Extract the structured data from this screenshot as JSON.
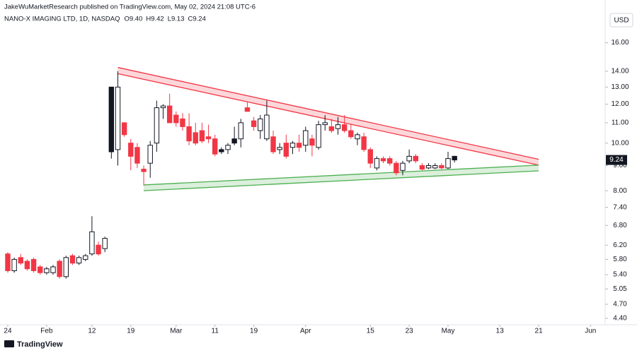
{
  "publisher": "JakeWuMarketResearch published on TradingView.com, May 02, 2024 21:08 UTC-6",
  "brand": "TradingView",
  "chart_data": {
    "type": "candlestick",
    "title": "NANO-X IMAGING LTD, 1D, NASDAQ",
    "ohlc_text": [
      "O9.40",
      "H9.42",
      "L9.13",
      "C9.24"
    ],
    "currency": "USD",
    "log_scale": true,
    "grid": false,
    "xlim": [
      -1.2,
      91.5
    ],
    "xticks": [
      {
        "value": 0,
        "label": "24"
      },
      {
        "value": 6,
        "label": "Feb"
      },
      {
        "value": 13,
        "label": "12"
      },
      {
        "value": 19,
        "label": "19"
      },
      {
        "value": 26,
        "label": "Mar"
      },
      {
        "value": 32,
        "label": "11"
      },
      {
        "value": 38,
        "label": "19"
      },
      {
        "value": 46,
        "label": "Apr"
      },
      {
        "value": 56,
        "label": "15"
      },
      {
        "value": 62,
        "label": "23"
      },
      {
        "value": 68,
        "label": "May"
      },
      {
        "value": 76,
        "label": "13"
      },
      {
        "value": 82,
        "label": "21"
      },
      {
        "value": 90,
        "label": "Jun"
      }
    ],
    "ylim": [
      4.27,
      18.6
    ],
    "yticks": [
      {
        "value": 16,
        "label": "16.00"
      },
      {
        "value": 14,
        "label": "14.00"
      },
      {
        "value": 13,
        "label": "13.00"
      },
      {
        "value": 12,
        "label": "12.00"
      },
      {
        "value": 11,
        "label": "11.00"
      },
      {
        "value": 10,
        "label": "10.00"
      },
      {
        "value": 9,
        "label": "9.00"
      },
      {
        "value": 8,
        "label": "8.00"
      },
      {
        "value": 7.4,
        "label": "7.40"
      },
      {
        "value": 6.8,
        "label": "6.80"
      },
      {
        "value": 6.2,
        "label": "6.20"
      },
      {
        "value": 5.8,
        "label": "5.80"
      },
      {
        "value": 5.4,
        "label": "5.40"
      },
      {
        "value": 5.05,
        "label": "5.05"
      },
      {
        "value": 4.7,
        "label": "4.70"
      },
      {
        "value": 4.4,
        "label": "4.40"
      }
    ],
    "open": [
      5.95,
      5.5,
      5.85,
      5.75,
      5.8,
      5.6,
      5.45,
      5.45,
      5.75,
      5.35,
      5.9,
      5.7,
      5.8,
      5.95,
      6.2,
      6.1,
      13.0,
      9.7,
      11.0,
      10.0,
      9.8,
      8.85,
      9.1,
      10.0,
      11.8,
      11.9,
      11.4,
      11.2,
      10.8,
      10.5,
      10.6,
      10.3,
      10.2,
      9.7,
      9.7,
      10.2,
      10.2,
      11.8,
      11.1,
      10.6,
      10.2,
      10.3,
      9.7,
      10.0,
      9.8,
      10.0,
      9.9,
      10.2,
      9.8,
      10.9,
      10.8,
      10.7,
      10.9,
      10.6,
      10.2,
      10.3,
      9.7,
      8.9,
      9.3,
      9.3,
      9.1,
      8.8,
      9.2,
      9.4,
      9.0,
      8.9,
      8.9,
      9.0,
      8.9,
      9.4
    ],
    "high": [
      6.0,
      5.85,
      5.95,
      5.8,
      5.85,
      5.65,
      5.6,
      5.65,
      5.8,
      5.9,
      5.95,
      5.9,
      5.95,
      7.1,
      6.3,
      6.45,
      13.0,
      14.0,
      11.0,
      10.2,
      10.0,
      9.0,
      10.1,
      12.2,
      12.0,
      12.6,
      11.6,
      11.5,
      11.5,
      11.0,
      11.0,
      10.9,
      10.4,
      9.8,
      10.0,
      10.8,
      11.2,
      12.1,
      11.3,
      11.4,
      12.2,
      10.6,
      10.0,
      10.4,
      10.1,
      10.4,
      10.8,
      10.4,
      11.1,
      11.4,
      11.2,
      11.3,
      11.4,
      10.9,
      10.5,
      10.5,
      9.8,
      9.4,
      9.4,
      9.4,
      9.2,
      9.2,
      9.7,
      9.5,
      9.1,
      9.1,
      9.1,
      9.1,
      9.6,
      9.42
    ],
    "low": [
      5.45,
      5.45,
      5.65,
      5.5,
      5.45,
      5.4,
      5.4,
      5.4,
      5.3,
      5.3,
      5.65,
      5.65,
      5.75,
      5.9,
      5.9,
      6.0,
      9.3,
      9.0,
      10.3,
      8.8,
      8.9,
      8.2,
      8.5,
      9.6,
      11.2,
      11.0,
      10.8,
      10.6,
      9.9,
      9.9,
      10.0,
      10.0,
      9.4,
      9.5,
      9.5,
      9.9,
      9.8,
      11.6,
      10.6,
      10.2,
      10.1,
      9.5,
      9.5,
      9.3,
      9.5,
      9.6,
      9.6,
      9.4,
      9.7,
      10.6,
      10.5,
      10.4,
      10.5,
      10.2,
      9.9,
      9.6,
      8.9,
      8.8,
      9.1,
      9.0,
      8.6,
      8.6,
      9.1,
      9.1,
      8.8,
      8.85,
      8.85,
      8.85,
      8.85,
      9.13
    ],
    "close": [
      5.5,
      5.8,
      5.7,
      5.55,
      5.5,
      5.45,
      5.55,
      5.6,
      5.35,
      5.85,
      5.7,
      5.85,
      5.9,
      6.6,
      5.95,
      6.4,
      9.6,
      13.0,
      10.4,
      9.4,
      9.1,
      8.75,
      9.9,
      11.8,
      11.9,
      11.0,
      11.0,
      10.8,
      10.1,
      10.0,
      10.1,
      10.2,
      9.5,
      9.6,
      9.9,
      10.0,
      11.0,
      11.6,
      10.8,
      11.2,
      11.4,
      9.6,
      9.8,
      9.4,
      10.0,
      9.8,
      10.6,
      9.9,
      10.9,
      11.0,
      10.6,
      10.9,
      10.6,
      10.3,
      10.4,
      9.7,
      9.1,
      9.3,
      9.2,
      9.1,
      8.7,
      9.1,
      9.4,
      9.2,
      8.85,
      9.0,
      9.0,
      8.9,
      9.3,
      9.24
    ],
    "colors": [
      "#f23645",
      "#ffffff",
      "#f23645",
      "#f23645",
      "#f23645",
      "#f23645",
      "#ffffff",
      "#ffffff",
      "#f23645",
      "#ffffff",
      "#f23645",
      "#ffffff",
      "#ffffff",
      "#ffffff",
      "#f23645",
      "#ffffff",
      "#131722",
      "#ffffff",
      "#f23645",
      "#f23645",
      "#f23645",
      "#f23645",
      "#ffffff",
      "#ffffff",
      "#ffffff",
      "#f23645",
      "#f23645",
      "#f23645",
      "#f23645",
      "#f23645",
      "#f23645",
      "#f23645",
      "#f23645",
      "#131722",
      "#ffffff",
      "#131722",
      "#ffffff",
      "#f23645",
      "#f23645",
      "#ffffff",
      "#ffffff",
      "#f23645",
      "#ffffff",
      "#f23645",
      "#ffffff",
      "#f23645",
      "#ffffff",
      "#f23645",
      "#ffffff",
      "#ffffff",
      "#f23645",
      "#ffffff",
      "#f23645",
      "#f23645",
      "#ffffff",
      "#f23645",
      "#f23645",
      "#ffffff",
      "#f23645",
      "#f23645",
      "#f23645",
      "#ffffff",
      "#ffffff",
      "#f23645",
      "#f23645",
      "#ffffff",
      "#ffffff",
      "#f23645",
      "#ffffff",
      "#131722"
    ],
    "bands": [
      {
        "x": [
          17,
          82
        ],
        "top": [
          14.25,
          9.27
        ],
        "bottom": [
          13.84,
          9.02
        ],
        "color": "#f23645"
      },
      {
        "x": [
          21,
          82
        ],
        "top": [
          8.22,
          9.02
        ],
        "bottom": [
          8.0,
          8.78
        ],
        "color": "#4caf50"
      }
    ]
  }
}
